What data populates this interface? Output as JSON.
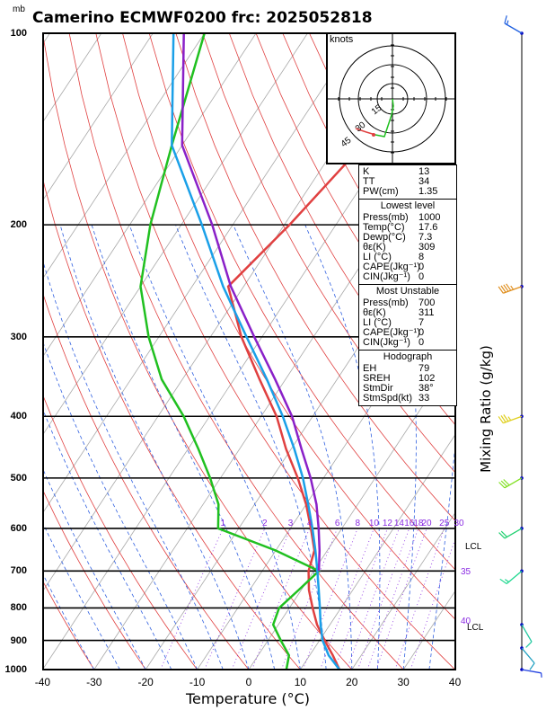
{
  "title": "Camerino ECMWF0200  frc: 2025052818",
  "pressure_unit": "mb",
  "chart_data": {
    "type": "skew-t",
    "xlabel": "Temperature (°C)",
    "ylabel": "",
    "xlim": [
      -40,
      40
    ],
    "ylim_mb": [
      1000,
      100
    ],
    "x_ticks": [
      "-40",
      "-30",
      "-20",
      "-10",
      "0",
      "10",
      "20",
      "30",
      "40"
    ],
    "p_ticks": [
      "100",
      "200",
      "300",
      "400",
      "500",
      "600",
      "700",
      "800",
      "900",
      "1000"
    ],
    "mixing_ratio_label": "Mixing Ratio  (g/kg)",
    "mixing_ratio_ticks": [
      "1",
      "2",
      "3",
      "4",
      "6",
      "8",
      "10",
      "12",
      "14",
      "16",
      "18",
      "20",
      "25",
      "30"
    ],
    "theta_e_labels": [
      "35",
      "40"
    ],
    "lcl_label": "LCL",
    "hodograph": {
      "units": "knots",
      "ring_labels": [
        "15",
        "30",
        "45"
      ]
    },
    "series": [
      {
        "name": "Temperature",
        "color": "#e04040",
        "points": [
          [
            1000,
            17.6
          ],
          [
            950,
            14.5
          ],
          [
            900,
            11
          ],
          [
            850,
            7.5
          ],
          [
            800,
            4.5
          ],
          [
            750,
            1.5
          ],
          [
            700,
            -1
          ],
          [
            650,
            -2.5
          ],
          [
            600,
            -6
          ],
          [
            550,
            -10
          ],
          [
            500,
            -15
          ],
          [
            450,
            -21
          ],
          [
            400,
            -27
          ],
          [
            350,
            -35
          ],
          [
            300,
            -44
          ],
          [
            250,
            -53
          ],
          [
            200,
            -49
          ],
          [
            150,
            -45
          ],
          [
            100,
            -44
          ]
        ]
      },
      {
        "name": "Dewpoint",
        "color": "#20c020",
        "points": [
          [
            1000,
            7.3
          ],
          [
            950,
            6
          ],
          [
            900,
            2.5
          ],
          [
            850,
            -1
          ],
          [
            800,
            -2
          ],
          [
            750,
            -0.5
          ],
          [
            700,
            1
          ],
          [
            650,
            -10
          ],
          [
            600,
            -24
          ],
          [
            550,
            -27
          ],
          [
            500,
            -32
          ],
          [
            450,
            -38
          ],
          [
            400,
            -45
          ],
          [
            350,
            -54
          ],
          [
            300,
            -62
          ],
          [
            250,
            -70
          ],
          [
            200,
            -76
          ],
          [
            150,
            -82
          ],
          [
            100,
            -90
          ]
        ]
      },
      {
        "name": "Parcel",
        "color": "#1aa0e8",
        "points": [
          [
            1000,
            17.6
          ],
          [
            950,
            13.7
          ],
          [
            900,
            10.6
          ],
          [
            850,
            8.2
          ],
          [
            800,
            5.9
          ],
          [
            750,
            3.4
          ],
          [
            700,
            0.7
          ],
          [
            650,
            -2.3
          ],
          [
            600,
            -5.7
          ],
          [
            550,
            -9.6
          ],
          [
            500,
            -14
          ],
          [
            450,
            -19.4
          ],
          [
            400,
            -25.8
          ],
          [
            350,
            -33.6
          ],
          [
            300,
            -43
          ],
          [
            250,
            -54
          ],
          [
            200,
            -66
          ],
          [
            150,
            -82
          ],
          [
            100,
            -96
          ]
        ]
      },
      {
        "name": "Virtual temperature",
        "color": "#8a20c8",
        "points": [
          [
            700,
            1
          ],
          [
            650,
            -1.5
          ],
          [
            600,
            -4.5
          ],
          [
            550,
            -8
          ],
          [
            500,
            -12.5
          ],
          [
            450,
            -18
          ],
          [
            400,
            -24
          ],
          [
            350,
            -32
          ],
          [
            300,
            -41.5
          ],
          [
            250,
            -52.5
          ],
          [
            200,
            -64
          ],
          [
            150,
            -80
          ],
          [
            100,
            -94
          ]
        ]
      }
    ],
    "wind_barbs": [
      {
        "p": 1000,
        "dir": 100,
        "kt": 5
      },
      {
        "p": 925,
        "dir": 140,
        "kt": 10
      },
      {
        "p": 850,
        "dir": 150,
        "kt": 10
      },
      {
        "p": 700,
        "dir": 230,
        "kt": 15
      },
      {
        "p": 600,
        "dir": 240,
        "kt": 20
      },
      {
        "p": 500,
        "dir": 240,
        "kt": 30
      },
      {
        "p": 400,
        "dir": 250,
        "kt": 35
      },
      {
        "p": 250,
        "dir": 250,
        "kt": 45
      },
      {
        "p": 100,
        "dir": 300,
        "kt": 15
      }
    ]
  },
  "info": {
    "general": [
      {
        "k": "K",
        "v": "13"
      },
      {
        "k": "TT",
        "v": "34"
      },
      {
        "k": "PW(cm)",
        "v": "1.35"
      }
    ],
    "lowest_title": "Lowest level",
    "lowest": [
      {
        "k": "Press(mb)",
        "v": "1000"
      },
      {
        "k": "Temp(°C)",
        "v": "17.6"
      },
      {
        "k": "Dewp(°C)",
        "v": "7.3"
      },
      {
        "k": "θε(K)",
        "v": "309"
      },
      {
        "k": "LI (°C)",
        "v": "8"
      },
      {
        "k": "CAPE(Jkg⁻¹)",
        "v": "0"
      },
      {
        "k": "CIN(Jkg⁻¹)",
        "v": "0"
      }
    ],
    "unstable_title": "Most Unstable",
    "unstable": [
      {
        "k": "Press(mb)",
        "v": "700"
      },
      {
        "k": "θε(K)",
        "v": "311"
      },
      {
        "k": "LI (°C)",
        "v": "7"
      },
      {
        "k": "CAPE(Jkg⁻¹)",
        "v": "0"
      },
      {
        "k": "CIN(Jkg⁻¹)",
        "v": "0"
      }
    ],
    "hodo_title": "Hodograph",
    "hodo": [
      {
        "k": "EH",
        "v": "79"
      },
      {
        "k": "SREH",
        "v": "102"
      },
      {
        "k": "StmDir",
        "v": "38°"
      },
      {
        "k": "StmSpd(kt)",
        "v": "33"
      }
    ]
  }
}
